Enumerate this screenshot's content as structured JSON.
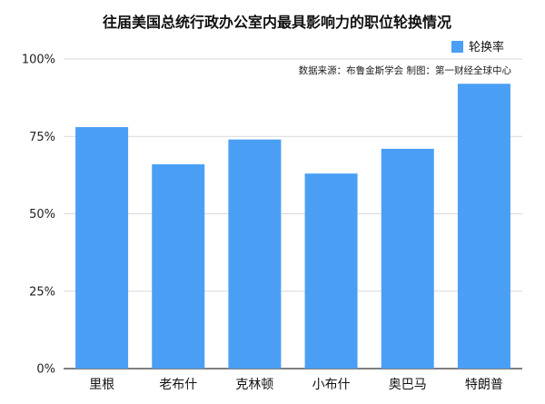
{
  "chart_data": {
    "type": "bar",
    "title": "往届美国总统行政办公室内最具影响力的职位轮换情况",
    "source": "数据来源：布鲁金斯学会 制图：第一财经全球中心",
    "categories": [
      "里根",
      "老布什",
      "克林顿",
      "小布什",
      "奥巴马",
      "特朗普"
    ],
    "series": [
      {
        "name": "轮换率",
        "values": [
          78,
          66,
          74,
          63,
          71,
          92
        ]
      }
    ],
    "ylim": [
      0,
      100
    ],
    "yticks": [
      0,
      25,
      50,
      75,
      100
    ],
    "ytick_labels": [
      "0%",
      "25%",
      "50%",
      "75%",
      "100%"
    ],
    "grid": true,
    "legend_position": "top-right",
    "colors": {
      "bar": "#4A9FF5",
      "grid": "#d9d9d9",
      "axis": "#333333"
    }
  }
}
